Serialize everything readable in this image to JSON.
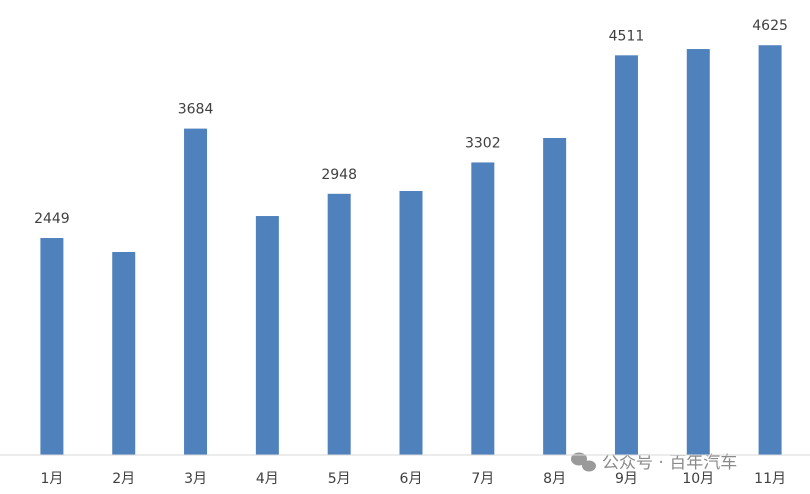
{
  "chart_data": {
    "type": "bar",
    "categories": [
      "1月",
      "2月",
      "3月",
      "4月",
      "5月",
      "6月",
      "7月",
      "8月",
      "9月",
      "10月",
      "11月"
    ],
    "values": [
      2449,
      2291,
      3684,
      2697,
      2948,
      2980,
      3302,
      3578,
      4511,
      4582,
      4625
    ],
    "value_labels": [
      "2449",
      null,
      "3684",
      null,
      "2948",
      null,
      "3302",
      null,
      "4511",
      null,
      "4625"
    ],
    "color": "#4f81bd",
    "ylim": [
      0,
      5000
    ]
  },
  "watermark": "公众号 · 百年汽车"
}
